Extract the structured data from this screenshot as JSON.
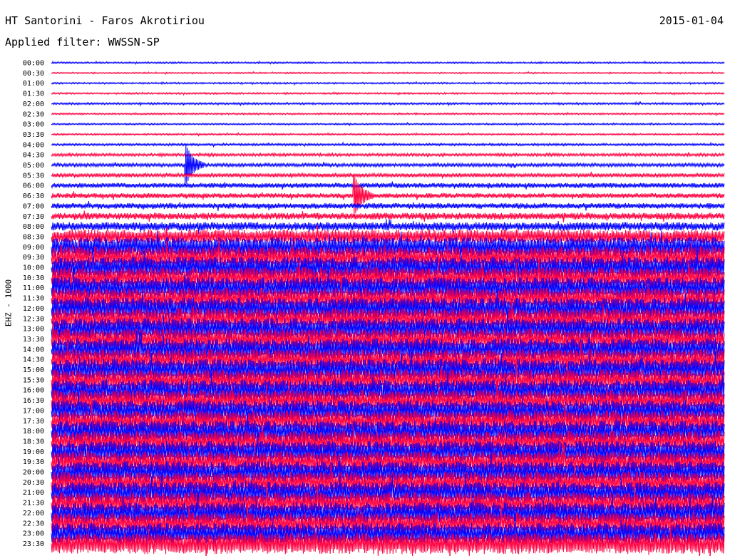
{
  "header": {
    "station": "HT Santorini - Faros Akrotiriou",
    "date": "2015-01-04",
    "filter": "Applied filter: WWSSN-SP"
  },
  "chart_data": {
    "type": "line",
    "title": "HT Santorini - Faros Akrotiriou",
    "subtitle": "Applied filter: WWSSN-SP",
    "date": "2015-01-04",
    "ylabel": "EHZ - 1000",
    "xlabel": "",
    "colors": [
      "#0000ff",
      "#ff0040"
    ],
    "row_labels": [
      "00:00",
      "00:30",
      "01:00",
      "01:30",
      "02:00",
      "02:30",
      "03:00",
      "03:30",
      "04:00",
      "04:30",
      "05:00",
      "05:30",
      "06:00",
      "06:30",
      "07:00",
      "07:30",
      "08:00",
      "08:30",
      "09:00",
      "09:30",
      "10:00",
      "10:30",
      "11:00",
      "11:30",
      "12:00",
      "12:30",
      "13:00",
      "13:30",
      "14:00",
      "14:30",
      "15:00",
      "15:30",
      "16:00",
      "16:30",
      "17:00",
      "17:30",
      "18:00",
      "18:30",
      "19:00",
      "19:30",
      "20:00",
      "20:30",
      "21:00",
      "21:30",
      "22:00",
      "22:30",
      "23:00",
      "23:30"
    ],
    "noise_amplitude": [
      0.3,
      0.25,
      0.3,
      0.3,
      0.35,
      0.3,
      0.3,
      0.3,
      0.4,
      0.5,
      0.6,
      0.7,
      0.9,
      0.9,
      1.0,
      1.2,
      1.5,
      2.5,
      3.5,
      3.8,
      3.8,
      3.8,
      3.8,
      3.8,
      3.8,
      3.8,
      3.8,
      3.8,
      3.8,
      3.8,
      3.8,
      3.8,
      3.8,
      3.8,
      3.8,
      3.8,
      3.8,
      3.8,
      3.8,
      3.8,
      3.8,
      3.8,
      3.8,
      3.8,
      3.8,
      3.8,
      3.8,
      3.8
    ],
    "events": [
      {
        "row": "05:00",
        "minute": 6,
        "amplitude": 2.0
      },
      {
        "row": "06:30",
        "minute": 13.5,
        "amplitude": 2.0
      }
    ],
    "row_minutes": 30
  }
}
